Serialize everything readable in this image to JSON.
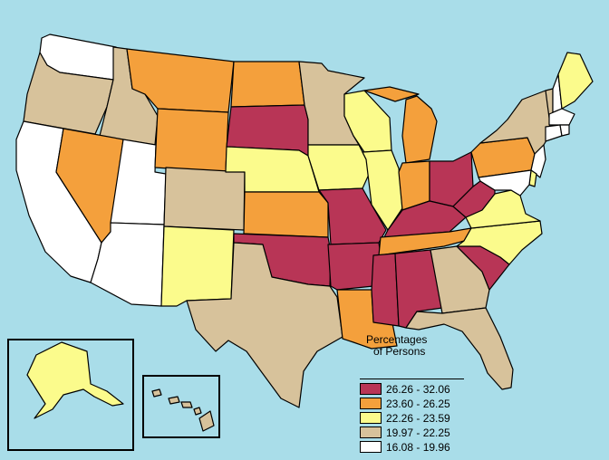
{
  "colors": {
    "water": "#a9dde9",
    "c5": "#b83556",
    "c4": "#f4a03c",
    "c3": "#fbfb8c",
    "c2": "#d7c29b",
    "c1": "#ffffff"
  },
  "legend": {
    "title_line1": "Percentages",
    "title_line2": "of Persons",
    "classes": [
      {
        "label": "26.26 - 32.06",
        "color": "#b83556"
      },
      {
        "label": "23.60 - 26.25",
        "color": "#f4a03c"
      },
      {
        "label": "22.26 - 23.59",
        "color": "#fbfb8c"
      },
      {
        "label": "19.97 - 22.25",
        "color": "#d7c29b"
      },
      {
        "label": "16.08 - 19.96",
        "color": "#ffffff"
      }
    ]
  },
  "states": [
    {
      "code": "WA",
      "class": 1
    },
    {
      "code": "OR",
      "class": 2
    },
    {
      "code": "CA",
      "class": 1
    },
    {
      "code": "ID",
      "class": 2
    },
    {
      "code": "NV",
      "class": 4
    },
    {
      "code": "UT",
      "class": 1
    },
    {
      "code": "AZ",
      "class": 1
    },
    {
      "code": "MT",
      "class": 4
    },
    {
      "code": "WY",
      "class": 4
    },
    {
      "code": "CO",
      "class": 2
    },
    {
      "code": "NM",
      "class": 3
    },
    {
      "code": "ND",
      "class": 4
    },
    {
      "code": "SD",
      "class": 5
    },
    {
      "code": "NE",
      "class": 3
    },
    {
      "code": "KS",
      "class": 4
    },
    {
      "code": "OK",
      "class": 5
    },
    {
      "code": "TX",
      "class": 2
    },
    {
      "code": "MN",
      "class": 2
    },
    {
      "code": "IA",
      "class": 3
    },
    {
      "code": "MO",
      "class": 5
    },
    {
      "code": "AR",
      "class": 5
    },
    {
      "code": "LA",
      "class": 4
    },
    {
      "code": "WI",
      "class": 3
    },
    {
      "code": "IL",
      "class": 3
    },
    {
      "code": "MI",
      "class": 4
    },
    {
      "code": "IN",
      "class": 4
    },
    {
      "code": "OH",
      "class": 5
    },
    {
      "code": "KY",
      "class": 5
    },
    {
      "code": "TN",
      "class": 4
    },
    {
      "code": "MS",
      "class": 5
    },
    {
      "code": "AL",
      "class": 5
    },
    {
      "code": "GA",
      "class": 2
    },
    {
      "code": "FL",
      "class": 2
    },
    {
      "code": "SC",
      "class": 5
    },
    {
      "code": "NC",
      "class": 3
    },
    {
      "code": "VA",
      "class": 3
    },
    {
      "code": "WV",
      "class": 5
    },
    {
      "code": "PA",
      "class": 4
    },
    {
      "code": "NY",
      "class": 2
    },
    {
      "code": "VT",
      "class": 2
    },
    {
      "code": "NH",
      "class": 1
    },
    {
      "code": "ME",
      "class": 3
    },
    {
      "code": "MA",
      "class": 1
    },
    {
      "code": "RI",
      "class": 1
    },
    {
      "code": "CT",
      "class": 1
    },
    {
      "code": "NJ",
      "class": 1
    },
    {
      "code": "DE",
      "class": 3
    },
    {
      "code": "MD",
      "class": 1
    },
    {
      "code": "AK",
      "class": 3
    },
    {
      "code": "HI",
      "class": 2
    }
  ]
}
